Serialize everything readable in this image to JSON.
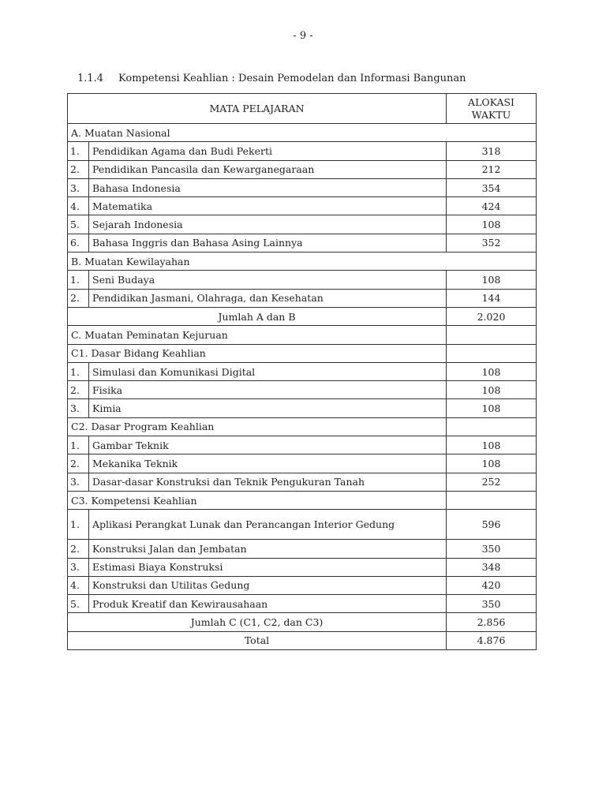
{
  "page_number": "- 9 -",
  "heading": {
    "number": "1.1.4",
    "title": "Kompetensi Keahlian : Desain Pemodelan dan Informasi Bangunan"
  },
  "table": {
    "header": {
      "subject": "MATA PELAJARAN",
      "allocation": "ALOKASI WAKTU"
    },
    "rows": [
      {
        "type": "section",
        "label": "A. Muatan Nasional",
        "full": true
      },
      {
        "type": "item",
        "no": "1.",
        "subject": "Pendidikan Agama dan Budi Pekerti",
        "value": "318"
      },
      {
        "type": "item",
        "no": "2.",
        "subject": "Pendidikan Pancasila dan Kewarganegaraan",
        "value": "212"
      },
      {
        "type": "item",
        "no": "3.",
        "subject": "Bahasa Indonesia",
        "value": "354"
      },
      {
        "type": "item",
        "no": "4.",
        "subject": "Matematika",
        "value": "424"
      },
      {
        "type": "item",
        "no": "5.",
        "subject": "Sejarah Indonesia",
        "value": "108"
      },
      {
        "type": "item",
        "no": "6.",
        "subject": "Bahasa Inggris dan Bahasa Asing Lainnya",
        "value": "352"
      },
      {
        "type": "section",
        "label": "B. Muatan Kewilayahan",
        "full": true
      },
      {
        "type": "item",
        "no": "1.",
        "subject": "Seni Budaya",
        "value": "108"
      },
      {
        "type": "item",
        "no": "2.",
        "subject": "Pendidikan Jasmani, Olahraga, dan Kesehatan",
        "value": "144"
      },
      {
        "type": "total",
        "label": "Jumlah A dan B",
        "value": "2.020"
      },
      {
        "type": "section",
        "label": "C. Muatan Peminatan Kejuruan"
      },
      {
        "type": "section",
        "label": "C1. Dasar Bidang Keahlian"
      },
      {
        "type": "item",
        "no": "1.",
        "subject": "Simulasi dan Komunikasi Digital",
        "value": "108"
      },
      {
        "type": "item",
        "no": "2.",
        "subject": "Fisika",
        "value": "108"
      },
      {
        "type": "item",
        "no": "3.",
        "subject": "Kimia",
        "value": "108"
      },
      {
        "type": "section",
        "label": "C2. Dasar Program Keahlian"
      },
      {
        "type": "item",
        "no": "1.",
        "subject": "Gambar Teknik",
        "value": "108"
      },
      {
        "type": "item",
        "no": "2.",
        "subject": "Mekanika Teknik",
        "value": "108"
      },
      {
        "type": "item",
        "no": "3.",
        "subject": "Dasar-dasar Konstruksi dan Teknik Pengukuran Tanah",
        "value": "252"
      },
      {
        "type": "section",
        "label": "C3. Kompetensi Keahlian"
      },
      {
        "type": "item",
        "no": "1.",
        "subject": "Aplikasi Perangkat Lunak dan Perancangan Interior Gedung",
        "value": "596",
        "double": true
      },
      {
        "type": "item",
        "no": "2.",
        "subject": "Konstruksi Jalan dan Jembatan",
        "value": "350"
      },
      {
        "type": "item",
        "no": "3.",
        "subject": "Estimasi Biaya Konstruksi",
        "value": "348"
      },
      {
        "type": "item",
        "no": "4.",
        "subject": "Konstruksi dan Utilitas Gedung",
        "value": "420"
      },
      {
        "type": "item",
        "no": "5.",
        "subject": "Produk Kreatif dan Kewirausahaan",
        "value": "350"
      },
      {
        "type": "total",
        "label": "Jumlah C (C1, C2, dan C3)",
        "value": "2.856"
      },
      {
        "type": "total",
        "label": "Total",
        "value": "4.876"
      }
    ]
  }
}
